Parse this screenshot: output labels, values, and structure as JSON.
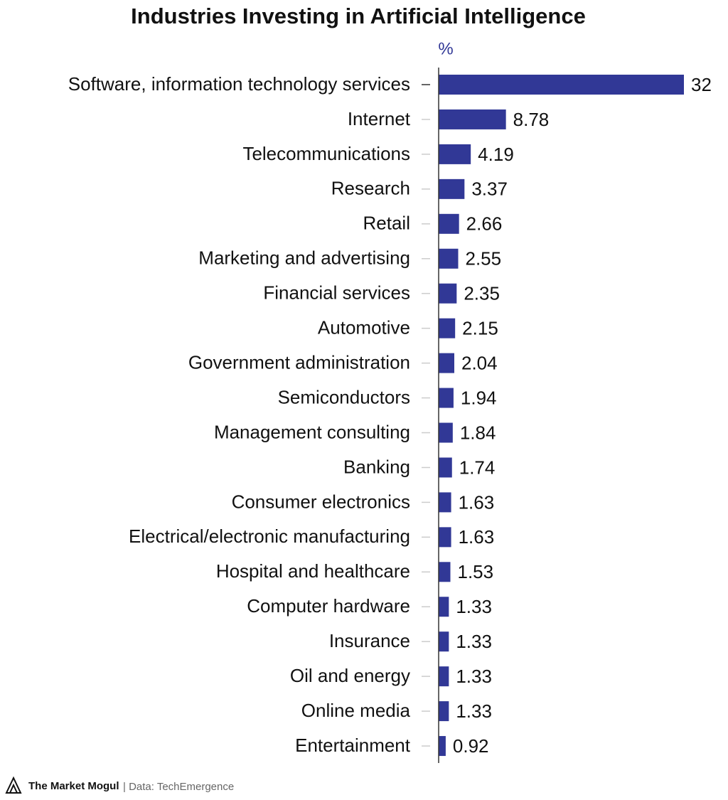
{
  "chart_data": {
    "type": "bar",
    "orientation": "horizontal",
    "title": "Industries Investing in Artificial Intelligence",
    "unit_label": "%",
    "categories": [
      "Software, information technology services",
      "Internet",
      "Telecommunications",
      "Research",
      "Retail",
      "Marketing and advertising",
      "Financial services",
      "Automotive",
      "Government administration",
      "Semiconductors",
      "Management consulting",
      "Banking",
      "Consumer electronics",
      "Electrical/electronic manufacturing",
      "Hospital and healthcare",
      "Computer hardware",
      "Insurance",
      "Oil and energy",
      "Online media",
      "Entertainment"
    ],
    "values": [
      32,
      8.78,
      4.19,
      3.37,
      2.66,
      2.55,
      2.35,
      2.15,
      2.04,
      1.94,
      1.84,
      1.74,
      1.63,
      1.63,
      1.53,
      1.33,
      1.33,
      1.33,
      1.33,
      0.92
    ],
    "color": "#313896",
    "xlim": [
      0,
      32
    ],
    "brand": "The Market Mogul",
    "source": "| Data: TechEmergence"
  }
}
